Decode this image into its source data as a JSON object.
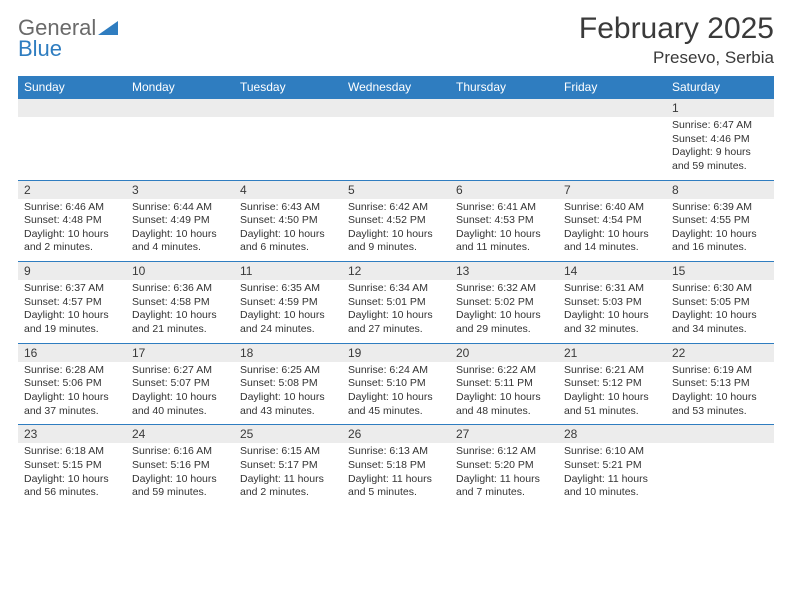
{
  "logo": {
    "word1": "General",
    "word2": "Blue"
  },
  "header": {
    "title": "February 2025",
    "location": "Presevo, Serbia"
  },
  "colors": {
    "brand_blue": "#2f7dc0",
    "text_gray": "#6a6a6a",
    "cell_header_bg": "#ececec",
    "background": "#ffffff"
  },
  "typography": {
    "title_fontsize": 30,
    "location_fontsize": 17,
    "header_fontsize": 12,
    "daynum_fontsize": 12,
    "info_fontsize": 10.5
  },
  "days_of_week": [
    "Sunday",
    "Monday",
    "Tuesday",
    "Wednesday",
    "Thursday",
    "Friday",
    "Saturday"
  ],
  "weeks": [
    [
      null,
      null,
      null,
      null,
      null,
      null,
      {
        "n": "1",
        "sr": "Sunrise: 6:47 AM",
        "ss": "Sunset: 4:46 PM",
        "dl": "Daylight: 9 hours and 59 minutes."
      }
    ],
    [
      {
        "n": "2",
        "sr": "Sunrise: 6:46 AM",
        "ss": "Sunset: 4:48 PM",
        "dl": "Daylight: 10 hours and 2 minutes."
      },
      {
        "n": "3",
        "sr": "Sunrise: 6:44 AM",
        "ss": "Sunset: 4:49 PM",
        "dl": "Daylight: 10 hours and 4 minutes."
      },
      {
        "n": "4",
        "sr": "Sunrise: 6:43 AM",
        "ss": "Sunset: 4:50 PM",
        "dl": "Daylight: 10 hours and 6 minutes."
      },
      {
        "n": "5",
        "sr": "Sunrise: 6:42 AM",
        "ss": "Sunset: 4:52 PM",
        "dl": "Daylight: 10 hours and 9 minutes."
      },
      {
        "n": "6",
        "sr": "Sunrise: 6:41 AM",
        "ss": "Sunset: 4:53 PM",
        "dl": "Daylight: 10 hours and 11 minutes."
      },
      {
        "n": "7",
        "sr": "Sunrise: 6:40 AM",
        "ss": "Sunset: 4:54 PM",
        "dl": "Daylight: 10 hours and 14 minutes."
      },
      {
        "n": "8",
        "sr": "Sunrise: 6:39 AM",
        "ss": "Sunset: 4:55 PM",
        "dl": "Daylight: 10 hours and 16 minutes."
      }
    ],
    [
      {
        "n": "9",
        "sr": "Sunrise: 6:37 AM",
        "ss": "Sunset: 4:57 PM",
        "dl": "Daylight: 10 hours and 19 minutes."
      },
      {
        "n": "10",
        "sr": "Sunrise: 6:36 AM",
        "ss": "Sunset: 4:58 PM",
        "dl": "Daylight: 10 hours and 21 minutes."
      },
      {
        "n": "11",
        "sr": "Sunrise: 6:35 AM",
        "ss": "Sunset: 4:59 PM",
        "dl": "Daylight: 10 hours and 24 minutes."
      },
      {
        "n": "12",
        "sr": "Sunrise: 6:34 AM",
        "ss": "Sunset: 5:01 PM",
        "dl": "Daylight: 10 hours and 27 minutes."
      },
      {
        "n": "13",
        "sr": "Sunrise: 6:32 AM",
        "ss": "Sunset: 5:02 PM",
        "dl": "Daylight: 10 hours and 29 minutes."
      },
      {
        "n": "14",
        "sr": "Sunrise: 6:31 AM",
        "ss": "Sunset: 5:03 PM",
        "dl": "Daylight: 10 hours and 32 minutes."
      },
      {
        "n": "15",
        "sr": "Sunrise: 6:30 AM",
        "ss": "Sunset: 5:05 PM",
        "dl": "Daylight: 10 hours and 34 minutes."
      }
    ],
    [
      {
        "n": "16",
        "sr": "Sunrise: 6:28 AM",
        "ss": "Sunset: 5:06 PM",
        "dl": "Daylight: 10 hours and 37 minutes."
      },
      {
        "n": "17",
        "sr": "Sunrise: 6:27 AM",
        "ss": "Sunset: 5:07 PM",
        "dl": "Daylight: 10 hours and 40 minutes."
      },
      {
        "n": "18",
        "sr": "Sunrise: 6:25 AM",
        "ss": "Sunset: 5:08 PM",
        "dl": "Daylight: 10 hours and 43 minutes."
      },
      {
        "n": "19",
        "sr": "Sunrise: 6:24 AM",
        "ss": "Sunset: 5:10 PM",
        "dl": "Daylight: 10 hours and 45 minutes."
      },
      {
        "n": "20",
        "sr": "Sunrise: 6:22 AM",
        "ss": "Sunset: 5:11 PM",
        "dl": "Daylight: 10 hours and 48 minutes."
      },
      {
        "n": "21",
        "sr": "Sunrise: 6:21 AM",
        "ss": "Sunset: 5:12 PM",
        "dl": "Daylight: 10 hours and 51 minutes."
      },
      {
        "n": "22",
        "sr": "Sunrise: 6:19 AM",
        "ss": "Sunset: 5:13 PM",
        "dl": "Daylight: 10 hours and 53 minutes."
      }
    ],
    [
      {
        "n": "23",
        "sr": "Sunrise: 6:18 AM",
        "ss": "Sunset: 5:15 PM",
        "dl": "Daylight: 10 hours and 56 minutes."
      },
      {
        "n": "24",
        "sr": "Sunrise: 6:16 AM",
        "ss": "Sunset: 5:16 PM",
        "dl": "Daylight: 10 hours and 59 minutes."
      },
      {
        "n": "25",
        "sr": "Sunrise: 6:15 AM",
        "ss": "Sunset: 5:17 PM",
        "dl": "Daylight: 11 hours and 2 minutes."
      },
      {
        "n": "26",
        "sr": "Sunrise: 6:13 AM",
        "ss": "Sunset: 5:18 PM",
        "dl": "Daylight: 11 hours and 5 minutes."
      },
      {
        "n": "27",
        "sr": "Sunrise: 6:12 AM",
        "ss": "Sunset: 5:20 PM",
        "dl": "Daylight: 11 hours and 7 minutes."
      },
      {
        "n": "28",
        "sr": "Sunrise: 6:10 AM",
        "ss": "Sunset: 5:21 PM",
        "dl": "Daylight: 11 hours and 10 minutes."
      },
      null
    ]
  ]
}
